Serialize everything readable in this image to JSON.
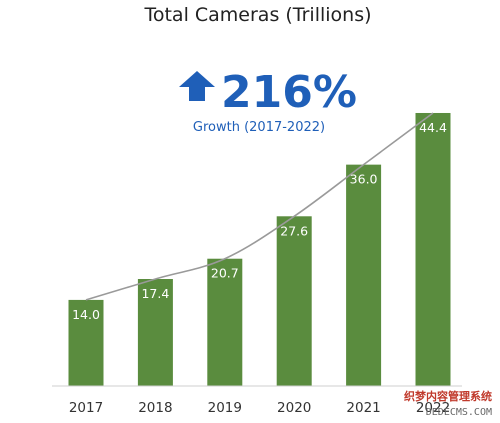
{
  "chart_data": {
    "type": "bar",
    "title": "Total Cameras (Trillions)",
    "categories": [
      "2017",
      "2018",
      "2019",
      "2020",
      "2021",
      "2022"
    ],
    "values": [
      14.0,
      17.4,
      20.7,
      27.6,
      36.0,
      44.4
    ],
    "value_labels": [
      "14.0",
      "17.4",
      "20.7",
      "27.6",
      "36.0",
      "44.4"
    ],
    "ylim": [
      0,
      47
    ],
    "xlabel": "",
    "ylabel": "",
    "grid": false,
    "trend_curve": true,
    "colors": {
      "bar": "#5a8c3e",
      "trend": "#9a9a9a",
      "accent": "#1f5fb8"
    },
    "growth_callout": {
      "value": "216%",
      "caption": "Growth (2017-2022)"
    }
  },
  "watermark": {
    "line1": "织梦内容管理系统",
    "line2": "DEDECMS.COM"
  }
}
